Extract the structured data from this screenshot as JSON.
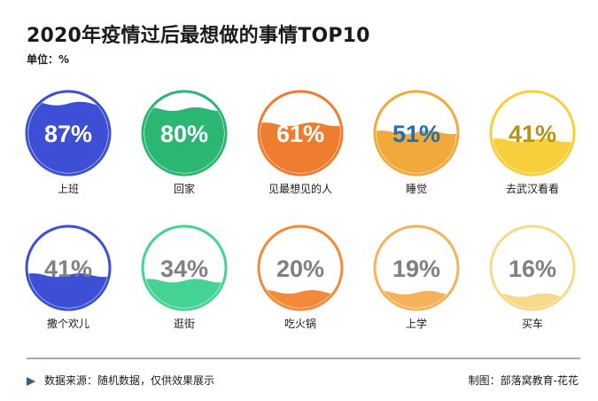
{
  "header": {
    "title": "2020年疫情过后最想做的事情TOP10",
    "unit": "单位：%"
  },
  "footer": {
    "source": "数据来源：随机数据，仅供效果展示",
    "credit": "制图：部落窝教育-花花"
  },
  "chart_data": {
    "type": "liquid-fill",
    "title": "2020年疫情过后最想做的事情TOP10",
    "unit": "%",
    "series": [
      {
        "label": "上班",
        "value": 87,
        "color": "#3d4fd4",
        "text_color": "#ffffff"
      },
      {
        "label": "回家",
        "value": 80,
        "color": "#2bb673",
        "text_color": "#ffffff"
      },
      {
        "label": "见最想见的人",
        "value": 61,
        "color": "#ee7d2f",
        "text_color": "#ffffff"
      },
      {
        "label": "睡觉",
        "value": 51,
        "color": "#f2a93b",
        "text_color": "#1f6fb3"
      },
      {
        "label": "去武汉看看",
        "value": 41,
        "color": "#f7cf3d",
        "text_color": "#b8910f"
      },
      {
        "label": "撒个欢儿",
        "value": 41,
        "color": "#3d4fd4",
        "text_color": "#808080"
      },
      {
        "label": "逛街",
        "value": 34,
        "color": "#45d394",
        "text_color": "#808080"
      },
      {
        "label": "吃火锅",
        "value": 20,
        "color": "#f28a3a",
        "text_color": "#808080"
      },
      {
        "label": "上学",
        "value": 19,
        "color": "#f4b25a",
        "text_color": "#808080"
      },
      {
        "label": "买车",
        "value": 16,
        "color": "#f7d98a",
        "text_color": "#808080"
      }
    ]
  }
}
